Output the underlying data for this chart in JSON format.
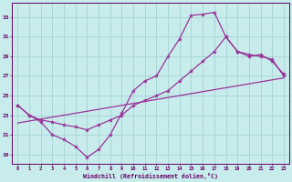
{
  "xlabel": "Windchill (Refroidissement éolien,°C)",
  "bg_color": "#c8ecec",
  "line_color": "#993399",
  "grid_color": "#9ecece",
  "tick_color": "#660066",
  "spine_color": "#660066",
  "xlim": [
    -0.5,
    23.5
  ],
  "ylim": [
    18.0,
    34.5
  ],
  "yticks": [
    19,
    21,
    23,
    25,
    27,
    29,
    31,
    33
  ],
  "xticks": [
    0,
    1,
    2,
    3,
    4,
    5,
    6,
    7,
    8,
    9,
    10,
    11,
    12,
    13,
    14,
    15,
    16,
    17,
    18,
    19,
    20,
    21,
    22,
    23
  ],
  "curve1_x": [
    0,
    1,
    2,
    3,
    4,
    5,
    6,
    7,
    8,
    9,
    10,
    11,
    12,
    13,
    14,
    15,
    16,
    17,
    18,
    19,
    20,
    21,
    22,
    23
  ],
  "curve1_y": [
    24.0,
    23.0,
    22.3,
    21.0,
    20.5,
    19.8,
    18.7,
    19.5,
    21.0,
    23.2,
    25.5,
    26.5,
    27.0,
    29.0,
    30.8,
    33.2,
    33.3,
    33.5,
    31.0,
    29.5,
    29.2,
    29.0,
    28.7,
    27.0
  ],
  "curve2_x": [
    0,
    1,
    2,
    3,
    4,
    5,
    6,
    7,
    8,
    9,
    10,
    11,
    12,
    13,
    14,
    15,
    16,
    17,
    18,
    19,
    20,
    21,
    22,
    23
  ],
  "curve2_y": [
    24.0,
    23.0,
    22.5,
    22.3,
    22.0,
    21.8,
    21.5,
    22.0,
    22.5,
    23.0,
    24.0,
    24.5,
    25.0,
    25.5,
    26.5,
    27.5,
    28.5,
    29.5,
    31.0,
    29.5,
    29.0,
    29.2,
    28.5,
    27.2
  ],
  "line3_x": [
    0,
    23
  ],
  "line3_y": [
    22.2,
    26.8
  ]
}
